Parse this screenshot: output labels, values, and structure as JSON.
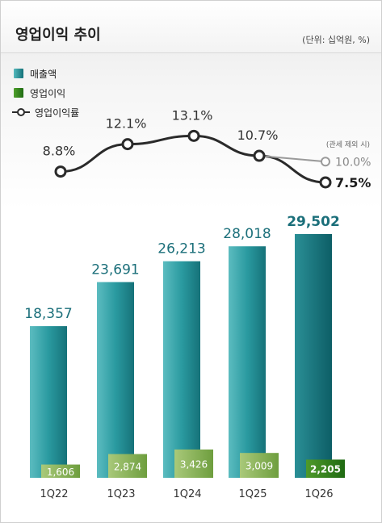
{
  "header": {
    "title": "영업이익 추이",
    "unit": "(단위: 십억원, %)"
  },
  "legend": {
    "revenue": "매출액",
    "operating_profit": "영업이익",
    "operating_margin": "영업이익률"
  },
  "colors": {
    "revenue": "#1f8a91",
    "operating_profit": "#5f9a3a",
    "operating_profit_highlight": "#2d7a1c",
    "line": "#2a2a2a",
    "text_revenue": "#1b6f7a",
    "text_margin": "#333333",
    "text_alt": "#888888"
  },
  "chart_data": {
    "type": "bar",
    "categories": [
      "1Q22",
      "1Q23",
      "1Q24",
      "1Q25",
      "1Q26"
    ],
    "series": [
      {
        "name": "매출액",
        "type": "bar",
        "values": [
          18357,
          23691,
          26213,
          28018,
          29502
        ],
        "labels": [
          "18,357",
          "23,691",
          "26,213",
          "28,018",
          "29,502"
        ]
      },
      {
        "name": "영업이익",
        "type": "bar",
        "values": [
          1606,
          2874,
          3426,
          3009,
          2205
        ],
        "labels": [
          "1,606",
          "2,874",
          "3,426",
          "3,009",
          "2,205"
        ]
      },
      {
        "name": "영업이익률",
        "type": "line",
        "values": [
          8.8,
          12.1,
          13.1,
          10.7,
          7.5
        ],
        "labels": [
          "8.8%",
          "12.1%",
          "13.1%",
          "10.7%",
          "7.5%"
        ]
      }
    ],
    "annotation": {
      "note": "(관세 제외 시)",
      "category": "1Q26",
      "value": 10.0,
      "label": "10.0%"
    },
    "legend_position": "top-left",
    "grid": false
  }
}
